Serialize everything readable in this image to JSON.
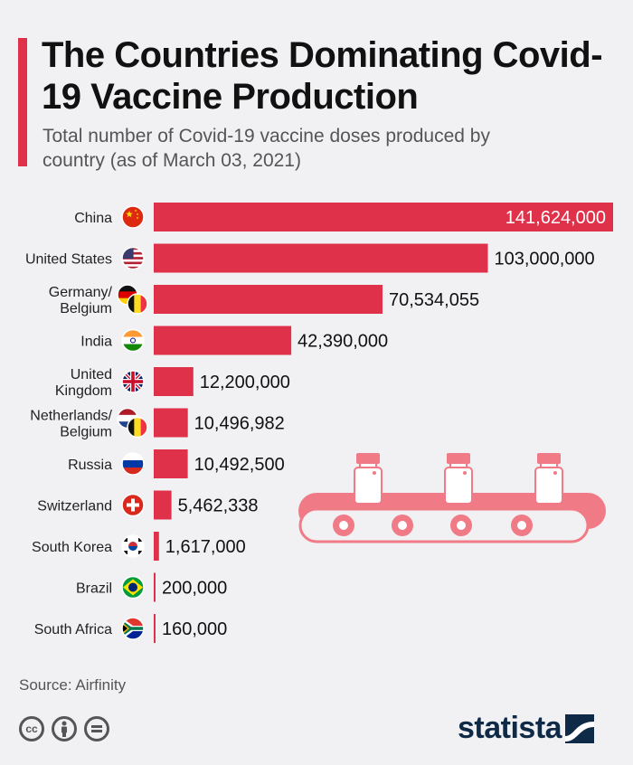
{
  "header": {
    "title": "The Countries Dominating Covid-19 Vaccine Production",
    "subtitle": "Total number of Covid-19 vaccine doses produced by country (as of March 03, 2021)"
  },
  "chart_data": {
    "type": "bar",
    "orientation": "horizontal",
    "categories": [
      "China",
      "United States",
      "Germany/ Belgium",
      "India",
      "United Kingdom",
      "Netherlands/ Belgium",
      "Russia",
      "Switzerland",
      "South Korea",
      "Brazil",
      "South Africa"
    ],
    "values": [
      141624000,
      103000000,
      70534055,
      42390000,
      12200000,
      10496982,
      10492500,
      5462338,
      1617000,
      200000,
      160000
    ],
    "value_labels": [
      "141,624,000",
      "103,000,000",
      "70,534,055",
      "42,390,000",
      "12,200,000",
      "10,496,982",
      "10,492,500",
      "5,462,338",
      "1,617,000",
      "200,000",
      "160,000"
    ],
    "flags": [
      "flag-china-icon",
      "flag-us-icon",
      "flag-germany-belgium-icon",
      "flag-india-icon",
      "flag-uk-icon",
      "flag-netherlands-belgium-icon",
      "flag-russia-icon",
      "flag-switzerland-icon",
      "flag-south-korea-icon",
      "flag-brazil-icon",
      "flag-south-africa-icon"
    ],
    "xlim": [
      0,
      141624000
    ],
    "bar_color": "#e0314b"
  },
  "footer": {
    "source": "Source: Airfinity",
    "brand": "statista",
    "license_icons": [
      "cc-icon",
      "attribution-icon",
      "no-derivatives-icon"
    ]
  },
  "colors": {
    "accent": "#e0314b",
    "background": "#f1f1f3",
    "brand": "#0e2a47",
    "illustration": "#f07a86"
  }
}
